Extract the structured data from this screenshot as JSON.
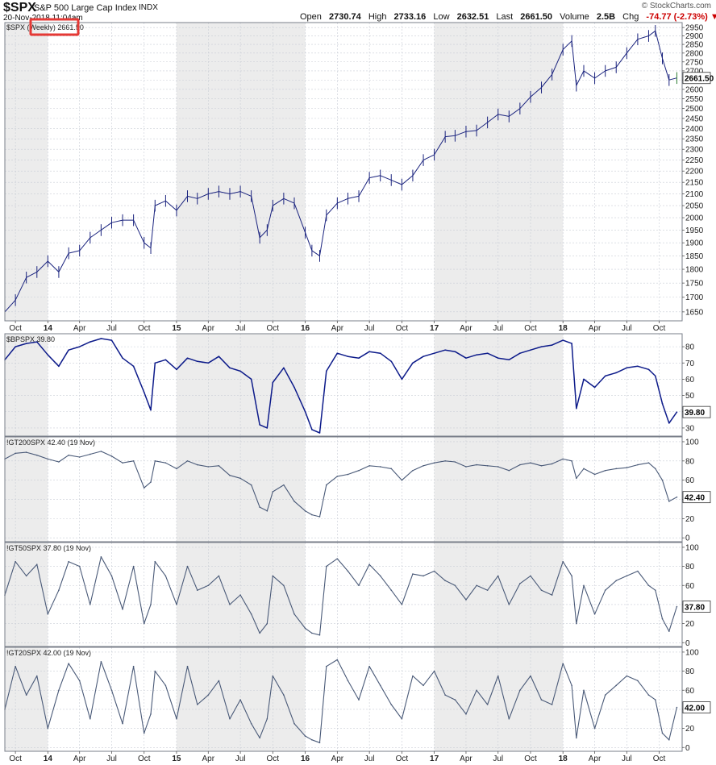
{
  "header": {
    "symbol": "$SPX",
    "name": "S&P 500 Large Cap Index",
    "exchange": "INDX",
    "datetime": "20-Nov-2018 11:04am",
    "brand": "© StockCharts.com",
    "open_label": "Open",
    "open": "2730.74",
    "high_label": "High",
    "high": "2733.16",
    "low_label": "Low",
    "low": "2632.51",
    "last_label": "Last",
    "last": "2661.50",
    "volume_label": "Volume",
    "volume": "2.5B",
    "chg_label": "Chg",
    "chg": "-74.77 (-2.73%)"
  },
  "colors": {
    "price": "#1a237e",
    "bp": "#0d1b8a",
    "breadth": "#4a5a78",
    "shade": "#ececec",
    "highlight": "#e53935",
    "last_tick": "#2e7d32"
  },
  "time_axis": [
    "Oct",
    "14",
    "Apr",
    "Jul",
    "Oct",
    "15",
    "Apr",
    "Jul",
    "Oct",
    "16",
    "Apr",
    "Jul",
    "Oct",
    "17",
    "Apr",
    "Jul",
    "Oct",
    "18",
    "Apr",
    "Jul",
    "Oct"
  ],
  "chart_data": [
    {
      "type": "line",
      "panel": "price",
      "title": "$SPX (Weekly) 2661.50",
      "interval_label": "(Weekly)",
      "scale": "log",
      "ylim": [
        1620,
        2980
      ],
      "yticks": [
        1650,
        1700,
        1750,
        1800,
        1850,
        1900,
        1950,
        2000,
        2050,
        2100,
        2150,
        2200,
        2250,
        2300,
        2350,
        2400,
        2450,
        2500,
        2550,
        2600,
        2650,
        2700,
        2750,
        2800,
        2850,
        2900,
        2950
      ],
      "last_value": "2661.50",
      "x": [
        "2013-09-01",
        "2013-10-01",
        "2013-11-01",
        "2013-12-01",
        "2014-01-01",
        "2014-02-01",
        "2014-03-01",
        "2014-04-01",
        "2014-05-01",
        "2014-06-01",
        "2014-07-01",
        "2014-08-01",
        "2014-09-01",
        "2014-10-01",
        "2014-10-20",
        "2014-11-01",
        "2014-12-01",
        "2015-01-01",
        "2015-02-01",
        "2015-03-01",
        "2015-04-01",
        "2015-05-01",
        "2015-06-01",
        "2015-07-01",
        "2015-08-01",
        "2015-08-25",
        "2015-09-15",
        "2015-10-01",
        "2015-11-01",
        "2015-12-01",
        "2016-01-01",
        "2016-01-20",
        "2016-02-11",
        "2016-03-01",
        "2016-04-01",
        "2016-05-01",
        "2016-06-01",
        "2016-07-01",
        "2016-08-01",
        "2016-09-01",
        "2016-10-01",
        "2016-11-01",
        "2016-12-01",
        "2017-01-01",
        "2017-02-01",
        "2017-03-01",
        "2017-04-01",
        "2017-05-01",
        "2017-06-01",
        "2017-07-01",
        "2017-08-01",
        "2017-09-01",
        "2017-10-01",
        "2017-11-01",
        "2017-12-01",
        "2018-01-01",
        "2018-01-26",
        "2018-02-08",
        "2018-03-01",
        "2018-04-01",
        "2018-05-01",
        "2018-06-01",
        "2018-07-01",
        "2018-08-01",
        "2018-09-01",
        "2018-09-20",
        "2018-10-10",
        "2018-10-29",
        "2018-11-20"
      ],
      "values": [
        1650,
        1690,
        1770,
        1790,
        1830,
        1790,
        1860,
        1870,
        1920,
        1950,
        1980,
        1990,
        1990,
        1900,
        1880,
        2050,
        2070,
        2030,
        2090,
        2080,
        2100,
        2110,
        2100,
        2110,
        2090,
        1920,
        1950,
        2050,
        2080,
        2060,
        1940,
        1870,
        1850,
        2010,
        2060,
        2080,
        2090,
        2170,
        2180,
        2160,
        2140,
        2180,
        2250,
        2275,
        2360,
        2365,
        2385,
        2390,
        2430,
        2470,
        2460,
        2500,
        2560,
        2610,
        2680,
        2820,
        2870,
        2620,
        2700,
        2660,
        2700,
        2720,
        2800,
        2880,
        2900,
        2930,
        2770,
        2650,
        2661
      ]
    },
    {
      "type": "line",
      "panel": "bp",
      "title": "$BPSPX 39.80",
      "ylim": [
        25,
        88
      ],
      "yticks": [
        30,
        40,
        50,
        60,
        70,
        80
      ],
      "last_value": "39.80",
      "x": [
        "2013-09-01",
        "2013-10-01",
        "2013-11-01",
        "2013-12-01",
        "2014-01-01",
        "2014-02-01",
        "2014-03-01",
        "2014-04-01",
        "2014-05-01",
        "2014-06-01",
        "2014-07-01",
        "2014-08-01",
        "2014-09-01",
        "2014-10-01",
        "2014-10-20",
        "2014-11-01",
        "2014-12-01",
        "2015-01-01",
        "2015-02-01",
        "2015-03-01",
        "2015-04-01",
        "2015-05-01",
        "2015-06-01",
        "2015-07-01",
        "2015-08-01",
        "2015-08-25",
        "2015-09-15",
        "2015-10-01",
        "2015-11-01",
        "2015-12-01",
        "2016-01-01",
        "2016-01-20",
        "2016-02-11",
        "2016-03-01",
        "2016-04-01",
        "2016-05-01",
        "2016-06-01",
        "2016-07-01",
        "2016-08-01",
        "2016-09-01",
        "2016-10-01",
        "2016-11-01",
        "2016-12-01",
        "2017-01-01",
        "2017-02-01",
        "2017-03-01",
        "2017-04-01",
        "2017-05-01",
        "2017-06-01",
        "2017-07-01",
        "2017-08-01",
        "2017-09-01",
        "2017-10-01",
        "2017-11-01",
        "2017-12-01",
        "2018-01-01",
        "2018-01-26",
        "2018-02-08",
        "2018-03-01",
        "2018-04-01",
        "2018-05-01",
        "2018-06-01",
        "2018-07-01",
        "2018-08-01",
        "2018-09-01",
        "2018-09-20",
        "2018-10-10",
        "2018-10-29",
        "2018-11-20"
      ],
      "values": [
        72,
        80,
        82,
        83,
        75,
        68,
        78,
        80,
        83,
        85,
        84,
        73,
        68,
        52,
        41,
        70,
        72,
        66,
        73,
        71,
        70,
        74,
        67,
        65,
        60,
        32,
        30,
        58,
        67,
        55,
        40,
        29,
        27,
        65,
        76,
        74,
        73,
        77,
        76,
        71,
        60,
        70,
        74,
        76,
        78,
        77,
        73,
        75,
        76,
        73,
        72,
        76,
        78,
        80,
        81,
        84,
        82,
        42,
        60,
        55,
        62,
        64,
        67,
        68,
        66,
        62,
        45,
        33,
        39.8
      ]
    },
    {
      "type": "line",
      "panel": "gt200",
      "title": "!GT200SPX 42.40 (19 Nov)",
      "ylim": [
        -4,
        105
      ],
      "yticks": [
        0,
        20,
        40,
        60,
        80,
        100
      ],
      "last_value": "42.40",
      "x": [
        "2013-09-01",
        "2013-10-01",
        "2013-11-01",
        "2013-12-01",
        "2014-01-01",
        "2014-02-01",
        "2014-03-01",
        "2014-04-01",
        "2014-05-01",
        "2014-06-01",
        "2014-07-01",
        "2014-08-01",
        "2014-09-01",
        "2014-10-01",
        "2014-10-20",
        "2014-11-01",
        "2014-12-01",
        "2015-01-01",
        "2015-02-01",
        "2015-03-01",
        "2015-04-01",
        "2015-05-01",
        "2015-06-01",
        "2015-07-01",
        "2015-08-01",
        "2015-08-25",
        "2015-09-15",
        "2015-10-01",
        "2015-11-01",
        "2015-12-01",
        "2016-01-01",
        "2016-01-20",
        "2016-02-11",
        "2016-03-01",
        "2016-04-01",
        "2016-05-01",
        "2016-06-01",
        "2016-07-01",
        "2016-08-01",
        "2016-09-01",
        "2016-10-01",
        "2016-11-01",
        "2016-12-01",
        "2017-01-01",
        "2017-02-01",
        "2017-03-01",
        "2017-04-01",
        "2017-05-01",
        "2017-06-01",
        "2017-07-01",
        "2017-08-01",
        "2017-09-01",
        "2017-10-01",
        "2017-11-01",
        "2017-12-01",
        "2018-01-01",
        "2018-01-26",
        "2018-02-08",
        "2018-03-01",
        "2018-04-01",
        "2018-05-01",
        "2018-06-01",
        "2018-07-01",
        "2018-08-01",
        "2018-09-01",
        "2018-09-20",
        "2018-10-10",
        "2018-10-29",
        "2018-11-20"
      ],
      "values": [
        82,
        88,
        89,
        86,
        82,
        79,
        86,
        84,
        87,
        90,
        85,
        78,
        80,
        52,
        58,
        80,
        78,
        72,
        80,
        76,
        74,
        75,
        65,
        62,
        55,
        32,
        28,
        48,
        55,
        38,
        28,
        24,
        22,
        55,
        64,
        66,
        70,
        75,
        74,
        72,
        60,
        70,
        75,
        78,
        80,
        79,
        74,
        76,
        75,
        74,
        70,
        76,
        78,
        75,
        77,
        82,
        80,
        62,
        72,
        66,
        70,
        72,
        73,
        76,
        78,
        72,
        60,
        38,
        42.4
      ]
    },
    {
      "type": "line",
      "panel": "gt50",
      "title": "!GT50SPX 37.80 (19 Nov)",
      "ylim": [
        -4,
        105
      ],
      "yticks": [
        0,
        20,
        40,
        60,
        80,
        100
      ],
      "last_value": "37.80",
      "x": [
        "2013-09-01",
        "2013-10-01",
        "2013-11-01",
        "2013-12-01",
        "2014-01-01",
        "2014-02-01",
        "2014-03-01",
        "2014-04-01",
        "2014-05-01",
        "2014-06-01",
        "2014-07-01",
        "2014-08-01",
        "2014-09-01",
        "2014-10-01",
        "2014-10-20",
        "2014-11-01",
        "2014-12-01",
        "2015-01-01",
        "2015-02-01",
        "2015-03-01",
        "2015-04-01",
        "2015-05-01",
        "2015-06-01",
        "2015-07-01",
        "2015-08-01",
        "2015-08-25",
        "2015-09-15",
        "2015-10-01",
        "2015-11-01",
        "2015-12-01",
        "2016-01-01",
        "2016-01-20",
        "2016-02-11",
        "2016-03-01",
        "2016-04-01",
        "2016-05-01",
        "2016-06-01",
        "2016-07-01",
        "2016-08-01",
        "2016-09-01",
        "2016-10-01",
        "2016-11-01",
        "2016-12-01",
        "2017-01-01",
        "2017-02-01",
        "2017-03-01",
        "2017-04-01",
        "2017-05-01",
        "2017-06-01",
        "2017-07-01",
        "2017-08-01",
        "2017-09-01",
        "2017-10-01",
        "2017-11-01",
        "2017-12-01",
        "2018-01-01",
        "2018-01-26",
        "2018-02-08",
        "2018-03-01",
        "2018-04-01",
        "2018-05-01",
        "2018-06-01",
        "2018-07-01",
        "2018-08-01",
        "2018-09-01",
        "2018-09-20",
        "2018-10-10",
        "2018-10-29",
        "2018-11-20"
      ],
      "values": [
        50,
        85,
        70,
        82,
        30,
        55,
        85,
        80,
        40,
        90,
        70,
        35,
        80,
        20,
        40,
        85,
        70,
        40,
        80,
        55,
        60,
        70,
        40,
        50,
        30,
        10,
        20,
        70,
        60,
        30,
        15,
        10,
        8,
        80,
        88,
        75,
        60,
        82,
        70,
        55,
        40,
        72,
        70,
        75,
        65,
        60,
        45,
        60,
        55,
        70,
        40,
        62,
        70,
        55,
        50,
        85,
        70,
        20,
        60,
        30,
        55,
        65,
        70,
        75,
        60,
        55,
        25,
        12,
        37.8
      ]
    },
    {
      "type": "line",
      "panel": "gt20",
      "title": "!GT20SPX 42.00 (19 Nov)",
      "ylim": [
        -4,
        105
      ],
      "yticks": [
        0,
        20,
        40,
        60,
        80,
        100
      ],
      "last_value": "42.00",
      "x": [
        "2013-09-01",
        "2013-10-01",
        "2013-11-01",
        "2013-12-01",
        "2014-01-01",
        "2014-02-01",
        "2014-03-01",
        "2014-04-01",
        "2014-05-01",
        "2014-06-01",
        "2014-07-01",
        "2014-08-01",
        "2014-09-01",
        "2014-10-01",
        "2014-10-20",
        "2014-11-01",
        "2014-12-01",
        "2015-01-01",
        "2015-02-01",
        "2015-03-01",
        "2015-04-01",
        "2015-05-01",
        "2015-06-01",
        "2015-07-01",
        "2015-08-01",
        "2015-08-25",
        "2015-09-15",
        "2015-10-01",
        "2015-11-01",
        "2015-12-01",
        "2016-01-01",
        "2016-01-20",
        "2016-02-11",
        "2016-03-01",
        "2016-04-01",
        "2016-05-01",
        "2016-06-01",
        "2016-07-01",
        "2016-08-01",
        "2016-09-01",
        "2016-10-01",
        "2016-11-01",
        "2016-12-01",
        "2017-01-01",
        "2017-02-01",
        "2017-03-01",
        "2017-04-01",
        "2017-05-01",
        "2017-06-01",
        "2017-07-01",
        "2017-08-01",
        "2017-09-01",
        "2017-10-01",
        "2017-11-01",
        "2017-12-01",
        "2018-01-01",
        "2018-01-26",
        "2018-02-08",
        "2018-03-01",
        "2018-04-01",
        "2018-05-01",
        "2018-06-01",
        "2018-07-01",
        "2018-08-01",
        "2018-09-01",
        "2018-09-20",
        "2018-10-10",
        "2018-10-29",
        "2018-11-20"
      ],
      "values": [
        40,
        85,
        55,
        75,
        20,
        60,
        88,
        70,
        30,
        90,
        60,
        25,
        85,
        15,
        35,
        80,
        65,
        30,
        85,
        45,
        55,
        70,
        30,
        50,
        25,
        10,
        30,
        75,
        55,
        25,
        12,
        8,
        5,
        85,
        92,
        70,
        50,
        85,
        65,
        45,
        30,
        75,
        65,
        80,
        55,
        50,
        35,
        60,
        45,
        75,
        30,
        60,
        75,
        50,
        45,
        88,
        65,
        10,
        60,
        20,
        55,
        65,
        75,
        70,
        55,
        50,
        15,
        8,
        42
      ]
    }
  ]
}
